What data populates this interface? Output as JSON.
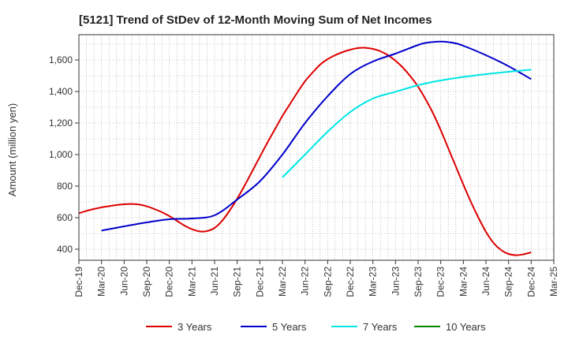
{
  "chart_data": {
    "type": "line",
    "title": "[5121]  Trend of StDev of 12-Month Moving Sum of Net Incomes",
    "ylabel": "Amount (million yen)",
    "xlabel": "",
    "x_ticks": [
      "Dec-19",
      "Mar-20",
      "Jun-20",
      "Sep-20",
      "Dec-20",
      "Mar-21",
      "Jun-21",
      "Sep-21",
      "Dec-21",
      "Mar-22",
      "Jun-22",
      "Sep-22",
      "Dec-22",
      "Mar-23",
      "Jun-23",
      "Sep-23",
      "Dec-23",
      "Mar-24",
      "Jun-24",
      "Sep-24",
      "Dec-24",
      "Mar-25"
    ],
    "y_ticks": [
      400,
      600,
      800,
      1000,
      1200,
      1400,
      1600
    ],
    "y_tick_labels": [
      "400",
      "600",
      "800",
      "1,000",
      "1,200",
      "1,400",
      "1,600"
    ],
    "ylim": [
      330,
      1760
    ],
    "grid": true,
    "legend_position": "bottom",
    "series": [
      {
        "name": "3 Years",
        "color": "#dd0000",
        "x": [
          "Dec-19",
          "Jan-20",
          "Feb-20",
          "Mar-20",
          "Apr-20",
          "May-20",
          "Jun-20",
          "Jul-20",
          "Aug-20",
          "Sep-20",
          "Oct-20",
          "Nov-20",
          "Dec-20",
          "Jan-21",
          "Feb-21",
          "Mar-21",
          "Apr-21",
          "May-21",
          "Jun-21",
          "Jul-21",
          "Aug-21",
          "Sep-21",
          "Oct-21",
          "Nov-21",
          "Dec-21",
          "Jan-22",
          "Feb-22",
          "Mar-22",
          "Apr-22",
          "May-22",
          "Jun-22",
          "Jul-22",
          "Aug-22",
          "Sep-22",
          "Oct-22",
          "Nov-22",
          "Dec-22",
          "Jan-23",
          "Feb-23",
          "Mar-23",
          "Apr-23",
          "May-23",
          "Jun-23",
          "Jul-23",
          "Aug-23",
          "Sep-23",
          "Oct-23",
          "Nov-23",
          "Dec-23",
          "Jan-24",
          "Feb-24",
          "Mar-24",
          "Apr-24",
          "May-24",
          "Jun-24",
          "Jul-24",
          "Aug-24",
          "Sep-24",
          "Oct-24",
          "Nov-24",
          "Dec-24"
        ],
        "values": [
          628,
          643,
          655,
          665,
          673,
          680,
          685,
          687,
          683,
          672,
          655,
          635,
          610,
          580,
          550,
          527,
          513,
          515,
          535,
          580,
          645,
          720,
          805,
          895,
          985,
          1075,
          1160,
          1245,
          1320,
          1395,
          1465,
          1520,
          1570,
          1605,
          1630,
          1650,
          1665,
          1675,
          1677,
          1670,
          1655,
          1630,
          1595,
          1550,
          1495,
          1430,
          1350,
          1260,
          1155,
          1040,
          925,
          810,
          700,
          600,
          510,
          440,
          395,
          370,
          362,
          368,
          380
        ]
      },
      {
        "name": "5 Years",
        "color": "#0000cc",
        "x": [
          "Mar-20",
          "Jun-20",
          "Sep-20",
          "Dec-20",
          "Mar-21",
          "Jun-21",
          "Sep-21",
          "Dec-21",
          "Mar-22",
          "Jun-22",
          "Sep-22",
          "Dec-22",
          "Mar-23",
          "Jun-23",
          "Sep-23",
          "Oct-23",
          "Nov-23",
          "Dec-23",
          "Jan-24",
          "Feb-24",
          "Mar-24",
          "Jun-24",
          "Sep-24",
          "Dec-24"
        ],
        "values": [
          518,
          545,
          570,
          590,
          595,
          615,
          715,
          830,
          1000,
          1200,
          1370,
          1510,
          1590,
          1640,
          1695,
          1708,
          1714,
          1716,
          1713,
          1705,
          1690,
          1630,
          1560,
          1478
        ]
      },
      {
        "name": "7 Years",
        "color": "#00e5e5",
        "x": [
          "Mar-22",
          "Jun-22",
          "Sep-22",
          "Dec-22",
          "Mar-23",
          "Jun-23",
          "Sep-23",
          "Dec-23",
          "Mar-24",
          "Jun-24",
          "Sep-24",
          "Dec-24"
        ],
        "values": [
          855,
          1000,
          1145,
          1270,
          1355,
          1398,
          1440,
          1470,
          1492,
          1510,
          1525,
          1538
        ]
      },
      {
        "name": "10 Years",
        "color": "#008800",
        "x": [],
        "values": []
      }
    ]
  }
}
